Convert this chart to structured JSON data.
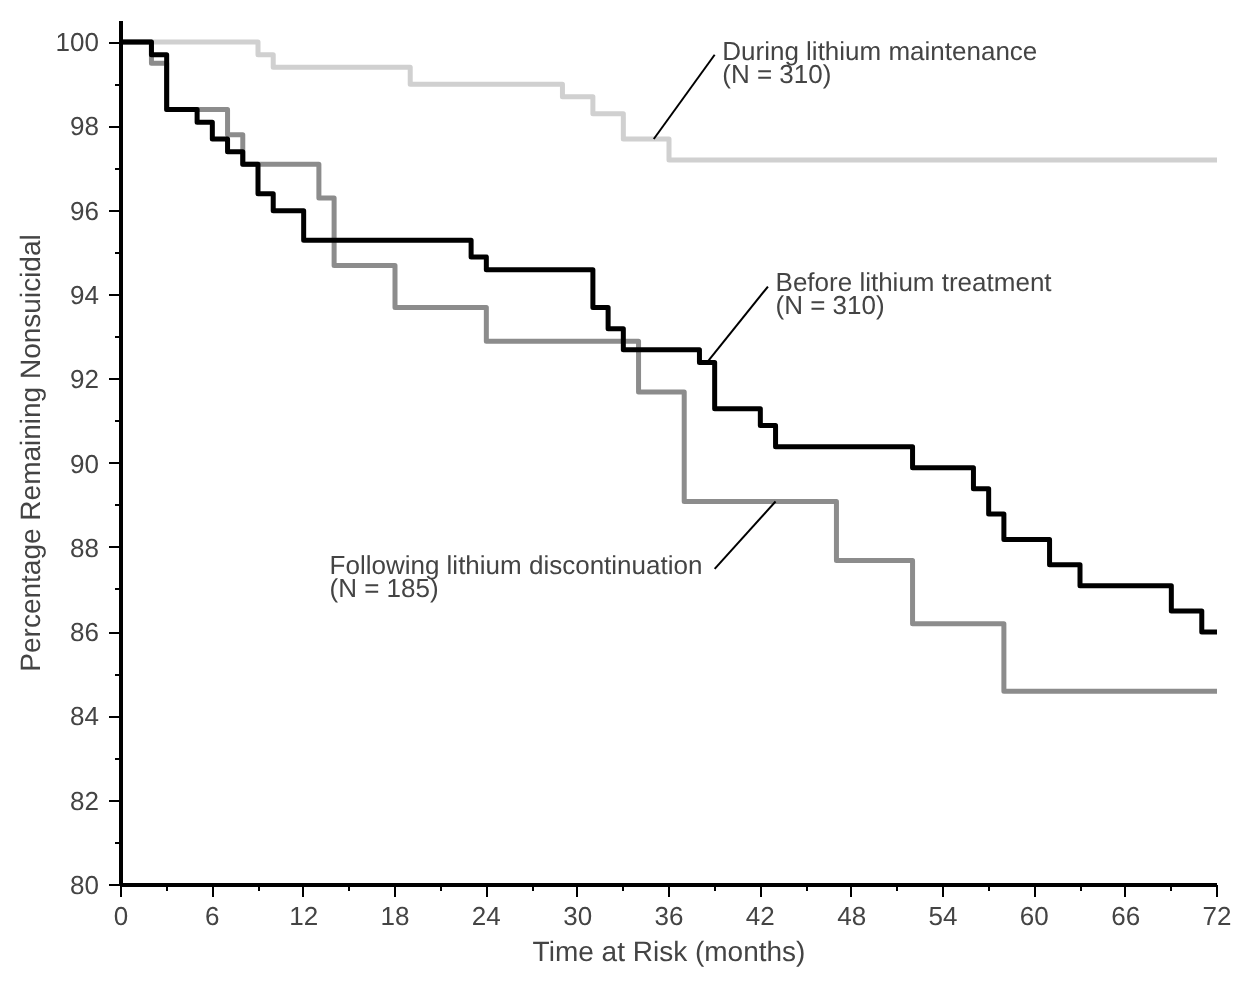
{
  "chart_data": {
    "type": "step",
    "xlabel": "Time at Risk (months)",
    "ylabel": "Percentage Remaining Nonsuicidal",
    "xlim": [
      0,
      72
    ],
    "ylim": [
      80,
      100.5
    ],
    "xticks": [
      0,
      6,
      12,
      18,
      24,
      30,
      36,
      42,
      48,
      54,
      60,
      66,
      72
    ],
    "yticks": [
      80,
      82,
      84,
      86,
      88,
      90,
      92,
      94,
      96,
      98,
      100
    ],
    "grid": false,
    "marker": "none",
    "line_style": "solid",
    "series": [
      {
        "color": "#d0d0d0",
        "x": [
          0,
          9,
          10,
          19,
          29,
          31,
          33,
          36,
          72
        ],
        "values": [
          100,
          99.7,
          99.4,
          99.0,
          98.7,
          98.3,
          97.7,
          97.2,
          97.2
        ]
      },
      {
        "color": "#8c8c8c",
        "x": [
          0,
          2,
          3,
          7,
          8,
          13,
          14,
          18,
          24,
          34,
          37,
          47,
          52,
          58,
          72
        ],
        "values": [
          100,
          99.5,
          98.4,
          97.8,
          97.1,
          96.3,
          94.7,
          93.7,
          92.9,
          91.7,
          89.1,
          87.7,
          86.2,
          84.6,
          84.6
        ]
      },
      {
        "color": "#000000",
        "x": [
          0,
          2,
          3,
          5,
          6,
          7,
          8,
          9,
          10,
          12,
          23,
          24,
          31,
          32,
          33,
          38,
          39,
          42,
          43,
          52,
          56,
          57,
          58,
          61,
          63,
          69,
          71,
          72
        ],
        "values": [
          100,
          99.7,
          98.4,
          98.1,
          97.7,
          97.4,
          97.1,
          96.4,
          96.0,
          95.3,
          94.9,
          94.6,
          93.7,
          93.2,
          92.7,
          92.4,
          91.3,
          90.9,
          90.4,
          89.9,
          89.4,
          88.8,
          88.2,
          87.6,
          87.1,
          86.5,
          86.0,
          86.0
        ]
      }
    ],
    "annotations": [
      {
        "text": "During lithium maintenance\n(N = 310)",
        "x": 35,
        "y": 97.7
      },
      {
        "text": "Before lithium treatment\n(N = 310)",
        "x": 38.5,
        "y": 92.4
      },
      {
        "text": "Following lithium discontinuation\n(N = 185)",
        "x": 43,
        "y": 89.1
      }
    ]
  }
}
